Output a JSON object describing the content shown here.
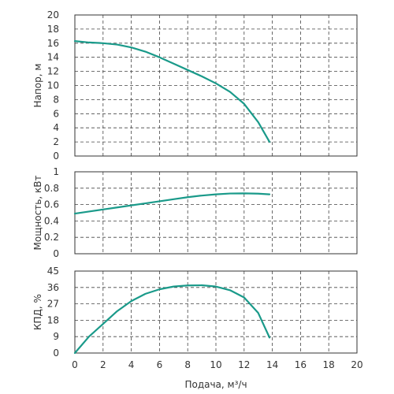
{
  "chart_data": [
    {
      "type": "line",
      "ylabel": "Напор, м",
      "xlim": [
        0,
        20
      ],
      "ylim": [
        0,
        20
      ],
      "yticks": [
        0,
        2,
        4,
        6,
        8,
        10,
        12,
        14,
        16,
        18,
        20
      ],
      "grid": true,
      "color": "#1a9a8a",
      "series": [
        {
          "x": [
            0,
            1,
            2,
            3,
            4,
            5,
            6,
            7,
            8,
            9,
            10,
            11,
            12,
            13,
            13.8
          ],
          "y": [
            16.3,
            16.1,
            16.0,
            15.8,
            15.4,
            14.8,
            14.0,
            13.1,
            12.2,
            11.3,
            10.3,
            9.1,
            7.4,
            4.8,
            2.0
          ]
        }
      ]
    },
    {
      "type": "line",
      "ylabel": "Мощность, кВт",
      "xlim": [
        0,
        20
      ],
      "ylim": [
        0,
        1
      ],
      "yticks": [
        0,
        0.2,
        0.4,
        0.6,
        0.8,
        1
      ],
      "grid": true,
      "color": "#1a9a8a",
      "series": [
        {
          "x": [
            0,
            1,
            2,
            3,
            4,
            5,
            6,
            7,
            8,
            9,
            10,
            11,
            12,
            13,
            13.8
          ],
          "y": [
            0.49,
            0.515,
            0.54,
            0.565,
            0.59,
            0.615,
            0.64,
            0.665,
            0.69,
            0.71,
            0.725,
            0.735,
            0.737,
            0.733,
            0.725
          ]
        }
      ]
    },
    {
      "type": "line",
      "ylabel": "КПД, %",
      "xlabel": "Подача, м³/ч",
      "xlim": [
        0,
        20
      ],
      "ylim": [
        0,
        45
      ],
      "yticks": [
        0,
        9,
        18,
        27,
        36,
        45
      ],
      "xticks": [
        0,
        2,
        4,
        6,
        8,
        10,
        12,
        14,
        16,
        18,
        20
      ],
      "grid": true,
      "color": "#1a9a8a",
      "series": [
        {
          "x": [
            0,
            1,
            2,
            3,
            4,
            5,
            6,
            7,
            8,
            9,
            10,
            11,
            12,
            13,
            13.8
          ],
          "y": [
            0,
            9,
            16,
            23,
            28.5,
            32.5,
            35,
            36.5,
            37.1,
            37.2,
            36.5,
            34.5,
            30.5,
            22,
            8.5
          ]
        }
      ]
    }
  ]
}
